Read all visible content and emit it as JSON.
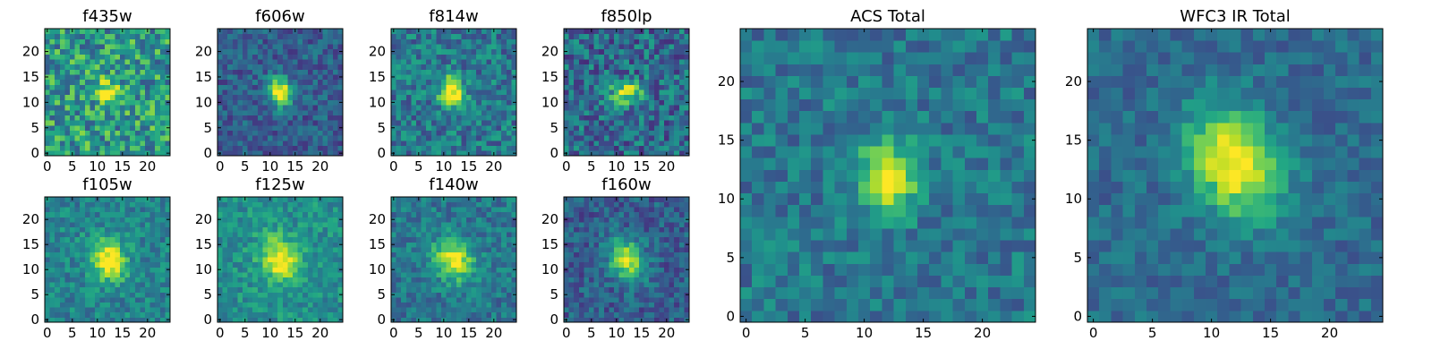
{
  "chart_data": [
    {
      "type": "heatmap",
      "title": "f435w",
      "image_size": 25,
      "xticks": [
        "0",
        "5",
        "10",
        "15",
        "20"
      ],
      "yticks": [
        "0",
        "5",
        "10",
        "15",
        "20"
      ],
      "source_center": [
        12,
        12
      ],
      "source_spread": [
        1.6,
        2.0
      ],
      "source_tilt": 0.3,
      "source_peak": 0.45,
      "noise_amp": 0.55,
      "background": 0.55,
      "seed": 11
    },
    {
      "type": "heatmap",
      "title": "f606w",
      "image_size": 25,
      "xticks": [
        "0",
        "5",
        "10",
        "15",
        "20"
      ],
      "yticks": [
        "0",
        "5",
        "10",
        "15",
        "20"
      ],
      "source_center": [
        12,
        12
      ],
      "source_spread": [
        1.6,
        2.0
      ],
      "source_tilt": 0.3,
      "source_peak": 0.75,
      "noise_amp": 0.3,
      "background": 0.3,
      "seed": 22
    },
    {
      "type": "heatmap",
      "title": "f814w",
      "image_size": 25,
      "xticks": [
        "0",
        "5",
        "10",
        "15",
        "20"
      ],
      "yticks": [
        "0",
        "5",
        "10",
        "15",
        "20"
      ],
      "source_center": [
        11.5,
        12
      ],
      "source_spread": [
        1.7,
        2.1
      ],
      "source_tilt": 0.3,
      "source_peak": 0.7,
      "noise_amp": 0.4,
      "background": 0.4,
      "seed": 33
    },
    {
      "type": "heatmap",
      "title": "f850lp",
      "image_size": 25,
      "xticks": [
        "0",
        "5",
        "10",
        "15",
        "20"
      ],
      "yticks": [
        "0",
        "5",
        "10",
        "15",
        "20"
      ],
      "source_center": [
        12,
        12
      ],
      "source_spread": [
        2.2,
        1.6
      ],
      "source_tilt": 0.0,
      "source_peak": 0.55,
      "noise_amp": 0.45,
      "background": 0.35,
      "seed": 44
    },
    {
      "type": "heatmap",
      "title": "f105w",
      "image_size": 25,
      "xticks": [
        "0",
        "5",
        "10",
        "15",
        "20"
      ],
      "yticks": [
        "0",
        "5",
        "10",
        "15",
        "20"
      ],
      "source_center": [
        12,
        12
      ],
      "source_spread": [
        2.4,
        3.0
      ],
      "source_tilt": 0.5,
      "source_peak": 0.6,
      "noise_amp": 0.3,
      "background": 0.45,
      "seed": 55
    },
    {
      "type": "heatmap",
      "title": "f125w",
      "image_size": 25,
      "xticks": [
        "0",
        "5",
        "10",
        "15",
        "20"
      ],
      "yticks": [
        "0",
        "5",
        "10",
        "15",
        "20"
      ],
      "source_center": [
        12,
        12
      ],
      "source_spread": [
        2.6,
        3.2
      ],
      "source_tilt": 0.5,
      "source_peak": 0.5,
      "noise_amp": 0.28,
      "background": 0.5,
      "seed": 66
    },
    {
      "type": "heatmap",
      "title": "f140w",
      "image_size": 25,
      "xticks": [
        "0",
        "5",
        "10",
        "15",
        "20"
      ],
      "yticks": [
        "0",
        "5",
        "10",
        "15",
        "20"
      ],
      "source_center": [
        12,
        12
      ],
      "source_spread": [
        2.5,
        3.0
      ],
      "source_tilt": 0.5,
      "source_peak": 0.6,
      "noise_amp": 0.3,
      "background": 0.4,
      "seed": 77
    },
    {
      "type": "heatmap",
      "title": "f160w",
      "image_size": 25,
      "xticks": [
        "0",
        "5",
        "10",
        "15",
        "20"
      ],
      "yticks": [
        "0",
        "5",
        "10",
        "15",
        "20"
      ],
      "source_center": [
        12,
        12
      ],
      "source_spread": [
        2.3,
        2.9
      ],
      "source_tilt": 0.5,
      "source_peak": 0.65,
      "noise_amp": 0.3,
      "background": 0.3,
      "seed": 88
    },
    {
      "type": "heatmap",
      "title": "ACS Total",
      "image_size": 25,
      "xticks": [
        "0",
        "5",
        "10",
        "15",
        "20"
      ],
      "yticks": [
        "0",
        "5",
        "10",
        "15",
        "20"
      ],
      "source_center": [
        12,
        12
      ],
      "source_spread": [
        1.7,
        2.1
      ],
      "source_tilt": 0.2,
      "source_peak": 0.6,
      "noise_amp": 0.3,
      "background": 0.4,
      "seed": 99
    },
    {
      "type": "heatmap",
      "title": "WFC3 IR Total",
      "image_size": 25,
      "xticks": [
        "0",
        "5",
        "10",
        "15",
        "20"
      ],
      "yticks": [
        "0",
        "5",
        "10",
        "15",
        "20"
      ],
      "source_center": [
        12,
        13
      ],
      "source_spread": [
        2.6,
        3.4
      ],
      "source_tilt": 0.5,
      "source_peak": 0.65,
      "noise_amp": 0.22,
      "background": 0.35,
      "seed": 111
    }
  ]
}
